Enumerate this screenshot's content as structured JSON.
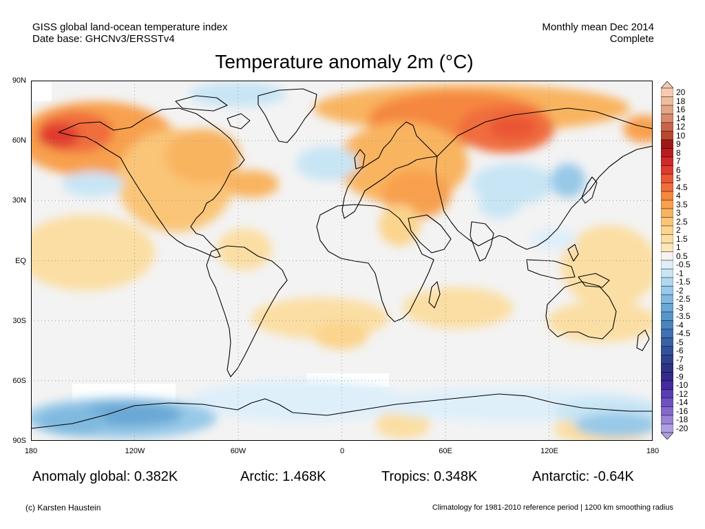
{
  "header": {
    "left_line1": "GISS global land-ocean temperature index",
    "left_line2": "Date base: GHCNv3/ERSSTv4",
    "right_line1": "Monthly mean Dec 2014",
    "right_line2": "Complete"
  },
  "title": "Temperature anomaly 2m (°C)",
  "map": {
    "lat_labels": [
      "90N",
      "60N",
      "30N",
      "EQ",
      "30S",
      "60S",
      "90S"
    ],
    "lon_labels": [
      "180",
      "120W",
      "60W",
      "0",
      "60E",
      "120E",
      "180"
    ],
    "lat_range": [
      -90,
      90
    ],
    "lon_range": [
      -180,
      180
    ],
    "grid": "dotted"
  },
  "colorbar": {
    "levels": [
      "20",
      "18",
      "16",
      "14",
      "12",
      "10",
      "9",
      "8",
      "7",
      "6",
      "5",
      "4.5",
      "4",
      "3.5",
      "3",
      "2.5",
      "2",
      "1.5",
      "1",
      "0.5",
      "-0.5",
      "-1",
      "-1.5",
      "-2",
      "-2.5",
      "-3",
      "-3.5",
      "-4",
      "-4.5",
      "-5",
      "-6",
      "-7",
      "-8",
      "-9",
      "-10",
      "-12",
      "-14",
      "-16",
      "-18",
      "-20"
    ],
    "colors": [
      "#f5cbb4",
      "#efbc9d",
      "#e2a587",
      "#d88a6c",
      "#c8644a",
      "#b64a2e",
      "#9d1919",
      "#b81d22",
      "#cf2a27",
      "#e03a2f",
      "#ea5734",
      "#f06d3c",
      "#f5873f",
      "#f8a04e",
      "#f9b461",
      "#fac577",
      "#fbd48d",
      "#fbdea3",
      "#fce7bb",
      "#f6f4ee",
      "#deeffa",
      "#c8e5f5",
      "#b0d8ef",
      "#98c9e8",
      "#80b9df",
      "#6aa8d5",
      "#5896ca",
      "#4a84bf",
      "#3f71b3",
      "#3861a7",
      "#33519b",
      "#30428e",
      "#2e3382",
      "#35288a",
      "#432b9e",
      "#5a3db0",
      "#6e52c0",
      "#8469cc",
      "#9a82d7",
      "#b09fe0"
    ]
  },
  "stats": {
    "global": "Anomaly global: 0.382K",
    "arctic": "Arctic: 1.468K",
    "tropics": "Tropics: 0.348K",
    "antarctic": "Antarctic: -0.64K"
  },
  "footer": {
    "left": "(c) Karsten Haustein",
    "right": "Climatology for 1981-2010 reference period | 1200 km smoothing radius"
  }
}
